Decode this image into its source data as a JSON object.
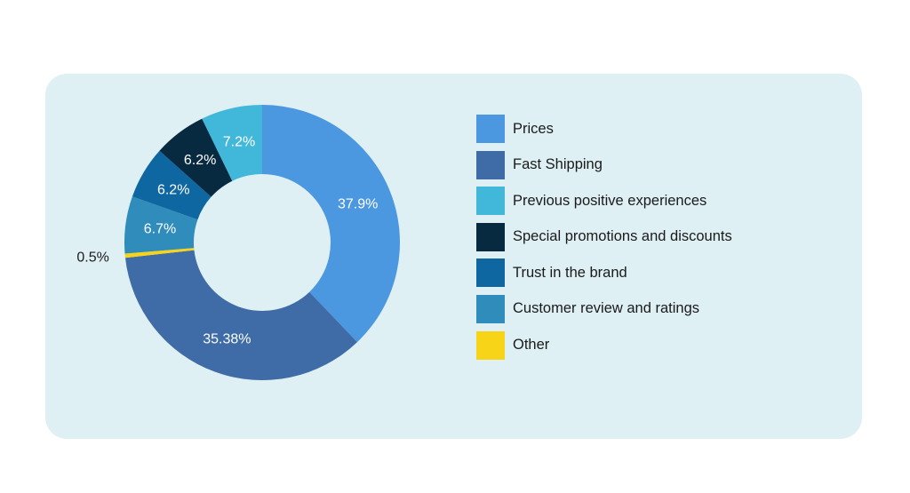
{
  "chart_data": {
    "type": "pie",
    "donut": true,
    "legend_position": "right",
    "series": [
      {
        "name": "Prices",
        "value": 37.9,
        "label": "37.9%",
        "color": "#4c98e0"
      },
      {
        "name": "Fast Shipping",
        "value": 35.38,
        "label": "35.38%",
        "color": "#3f6ca7"
      },
      {
        "name": "Other",
        "value": 0.5,
        "label": "0.5%",
        "color": "#f7d417"
      },
      {
        "name": "Customer review and ratings",
        "value": 6.7,
        "label": "6.7%",
        "color": "#2f8cbb"
      },
      {
        "name": "Trust in the brand",
        "value": 6.2,
        "label": "6.2%",
        "color": "#0f67a1"
      },
      {
        "name": "Special promotions and discounts",
        "value": 6.2,
        "label": "6.2%",
        "color": "#082a41"
      },
      {
        "name": "Previous positive experiences",
        "value": 7.2,
        "label": "7.2%",
        "color": "#41b8da"
      }
    ]
  },
  "legend": {
    "items": [
      {
        "label": "Prices",
        "color": "#4c98e0"
      },
      {
        "label": "Fast Shipping",
        "color": "#3f6ca7"
      },
      {
        "label": "Previous positive experiences",
        "color": "#41b8da"
      },
      {
        "label": "Special promotions and discounts",
        "color": "#082a41"
      },
      {
        "label": "Trust in the brand",
        "color": "#0f67a1"
      },
      {
        "label": "Customer review and ratings",
        "color": "#2f8cbb"
      },
      {
        "label": "Other",
        "color": "#f7d417"
      }
    ]
  }
}
